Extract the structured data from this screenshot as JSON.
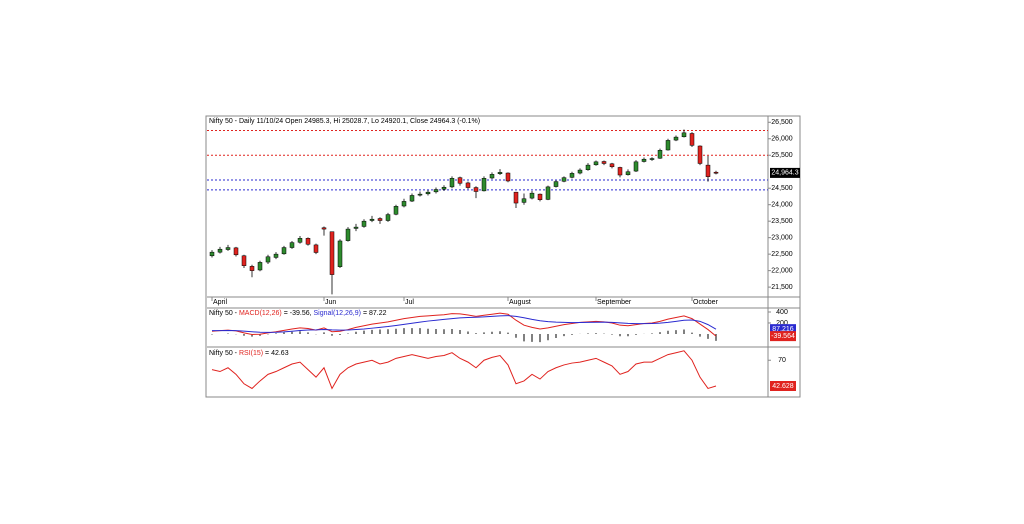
{
  "chart_data": [
    {
      "type": "candlestick",
      "title": "Nifty 50 - Daily 11/10/24 Open 24985.3, Hi 25028.7, Lo 24920.1, Close 24964.3 (-0.1%)",
      "categories": [
        "April",
        null,
        null,
        null,
        null,
        null,
        null,
        null,
        null,
        null,
        null,
        null,
        null,
        null,
        "Jun",
        null,
        null,
        null,
        null,
        null,
        null,
        null,
        null,
        null,
        "Jul",
        null,
        null,
        null,
        null,
        null,
        null,
        null,
        null,
        null,
        null,
        null,
        null,
        "August",
        null,
        null,
        null,
        null,
        null,
        null,
        null,
        null,
        null,
        null,
        "September",
        null,
        null,
        null,
        null,
        null,
        null,
        null,
        null,
        null,
        null,
        null,
        "October",
        null,
        null,
        null
      ],
      "open": [
        22450,
        22560,
        22640,
        22690,
        22450,
        22130,
        22020,
        22260,
        22400,
        22510,
        22700,
        22860,
        22980,
        22780,
        23300,
        23180,
        22120,
        22910,
        23280,
        23340,
        23520,
        23580,
        23520,
        23710,
        23960,
        24110,
        24290,
        24330,
        24390,
        24470,
        24540,
        24820,
        24660,
        24520,
        24420,
        24810,
        24940,
        24960,
        24380,
        24070,
        24200,
        24320,
        24160,
        24550,
        24710,
        24830,
        24960,
        25060,
        25210,
        25310,
        25240,
        25130,
        24910,
        25020,
        25310,
        25390,
        25410,
        25660,
        25960,
        26060,
        26160,
        25780,
        25200,
        24985.3
      ],
      "high": [
        22620,
        22720,
        22780,
        22720,
        22480,
        22180,
        22300,
        22480,
        22560,
        22750,
        22900,
        23050,
        23010,
        22820,
        23340,
        23180,
        22950,
        23320,
        23420,
        23560,
        23660,
        23620,
        23750,
        24000,
        24180,
        24340,
        24400,
        24440,
        24520,
        24590,
        24860,
        24850,
        24700,
        24560,
        24860,
        24980,
        25080,
        24980,
        24390,
        24340,
        24420,
        24340,
        24580,
        24740,
        24860,
        25000,
        25100,
        25260,
        25340,
        25340,
        25270,
        25150,
        25070,
        25350,
        25430,
        25440,
        25700,
        26000,
        26100,
        26280,
        26200,
        25800,
        25480,
        25028.7
      ],
      "low": [
        22400,
        22520,
        22600,
        22430,
        22080,
        21800,
        21980,
        22200,
        22350,
        22480,
        22660,
        22820,
        22760,
        22500,
        23060,
        21280,
        22080,
        22880,
        23200,
        23300,
        23470,
        23420,
        23480,
        23680,
        23920,
        24080,
        24250,
        24280,
        24340,
        24420,
        24500,
        24580,
        24480,
        24200,
        24400,
        24780,
        24900,
        24680,
        23900,
        24000,
        24160,
        24100,
        24140,
        24520,
        24680,
        24800,
        24920,
        25030,
        25180,
        25200,
        25100,
        24830,
        24880,
        24990,
        25280,
        25330,
        25390,
        25640,
        25930,
        26040,
        25750,
        25200,
        24700,
        24920.1
      ],
      "close": [
        22560,
        22650,
        22700,
        22480,
        22150,
        22000,
        22250,
        22420,
        22500,
        22700,
        22850,
        22980,
        22800,
        22550,
        23260,
        21880,
        22900,
        23260,
        23320,
        23500,
        23560,
        23520,
        23700,
        23950,
        24100,
        24280,
        24320,
        24380,
        24460,
        24530,
        24800,
        24650,
        24520,
        24400,
        24800,
        24920,
        24980,
        24720,
        24050,
        24180,
        24350,
        24150,
        24540,
        24700,
        24820,
        24950,
        25050,
        25200,
        25300,
        25250,
        25150,
        24900,
        25000,
        25300,
        25380,
        25400,
        25650,
        25950,
        26050,
        26180,
        25800,
        25250,
        24850,
        24964.3
      ],
      "last_label": "24,964.3",
      "up_color": "#2e8b2e",
      "down_color": "#e0231f",
      "ylim": [
        21200,
        26660
      ],
      "yticks": [
        {
          "value": 21500,
          "label": "21,500"
        },
        {
          "value": 22000,
          "label": "22,000"
        },
        {
          "value": 22500,
          "label": "22,500"
        },
        {
          "value": 23000,
          "label": "23,000"
        },
        {
          "value": 23500,
          "label": "23,500"
        },
        {
          "value": 24000,
          "label": "24,000"
        },
        {
          "value": 24500,
          "label": "24,500"
        },
        {
          "value": 25500,
          "label": "25,500"
        },
        {
          "value": 26000,
          "label": "26,000"
        },
        {
          "value": 26500,
          "label": "26,500"
        }
      ],
      "levels": [
        {
          "value": 26250,
          "color": "#e0231f"
        },
        {
          "value": 25500,
          "color": "#e0231f"
        },
        {
          "value": 24750,
          "color": "#2a2ad0"
        },
        {
          "value": 24450,
          "color": "#2a2ad0"
        }
      ]
    },
    {
      "type": "macd",
      "title_prefix": "Nifty 50 -",
      "series": [
        {
          "name": "MACD(12,26)",
          "readout": "= -39.56,",
          "color": "#e0231f",
          "last_label": "-39.564",
          "values": [
            50,
            60,
            70,
            55,
            20,
            -10,
            -5,
            20,
            40,
            65,
            90,
            110,
            100,
            70,
            110,
            40,
            50,
            80,
            120,
            150,
            180,
            200,
            220,
            250,
            280,
            300,
            320,
            330,
            340,
            350,
            370,
            365,
            345,
            320,
            340,
            360,
            380,
            360,
            250,
            160,
            120,
            90,
            110,
            140,
            170,
            190,
            210,
            220,
            230,
            220,
            200,
            160,
            150,
            170,
            190,
            200,
            230,
            270,
            300,
            330,
            280,
            180,
            80,
            -39.564
          ]
        },
        {
          "name": "Signal(12,26,9)",
          "readout": "= 87.22",
          "color": "#2a2ad0",
          "last_label": "87.216",
          "values": [
            60,
            60,
            62,
            60,
            52,
            40,
            30,
            28,
            30,
            38,
            50,
            62,
            72,
            75,
            82,
            74,
            70,
            72,
            80,
            90,
            105,
            120,
            135,
            155,
            175,
            195,
            215,
            235,
            250,
            265,
            280,
            292,
            300,
            305,
            312,
            320,
            330,
            335,
            320,
            295,
            265,
            240,
            225,
            215,
            210,
            207,
            208,
            210,
            214,
            215,
            212,
            202,
            192,
            188,
            188,
            190,
            198,
            212,
            230,
            250,
            255,
            230,
            170,
            87.216
          ]
        }
      ],
      "histogram": [
        -10,
        0,
        8,
        -5,
        -32,
        -50,
        -35,
        -8,
        10,
        27,
        40,
        48,
        28,
        -5,
        28,
        -34,
        -20,
        8,
        40,
        60,
        75,
        80,
        85,
        95,
        105,
        105,
        105,
        95,
        90,
        85,
        90,
        73,
        45,
        15,
        28,
        40,
        50,
        25,
        -70,
        -135,
        -145,
        -150,
        -115,
        -75,
        -40,
        -17,
        2,
        10,
        16,
        5,
        -12,
        -42,
        -42,
        -18,
        2,
        10,
        32,
        58,
        70,
        80,
        25,
        -50,
        -90,
        -126.78
      ],
      "ylim": [
        -220,
        455
      ],
      "yticks": [
        200,
        400
      ]
    },
    {
      "type": "rsi",
      "title_prefix": "Nifty 50 -",
      "series": [
        {
          "name": "RSI(15)",
          "readout": "= 42.63",
          "color": "#e0231f",
          "last_label": "42.628",
          "values": [
            60,
            58,
            62,
            55,
            45,
            40,
            48,
            55,
            58,
            62,
            66,
            68,
            60,
            52,
            62,
            40,
            55,
            62,
            66,
            68,
            70,
            66,
            68,
            72,
            74,
            76,
            74,
            72,
            74,
            75,
            78,
            72,
            68,
            62,
            70,
            73,
            75,
            65,
            45,
            48,
            55,
            50,
            58,
            62,
            65,
            67,
            68,
            70,
            72,
            68,
            64,
            55,
            58,
            66,
            68,
            68,
            72,
            76,
            78,
            80,
            70,
            52,
            40,
            42.628
          ]
        }
      ],
      "ylim": [
        32,
        83
      ],
      "yticks": [
        70
      ]
    }
  ]
}
